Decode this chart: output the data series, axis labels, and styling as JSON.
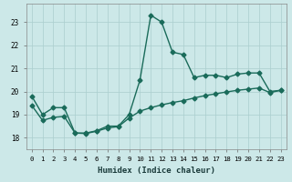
{
  "x": [
    0,
    1,
    2,
    3,
    4,
    5,
    6,
    7,
    8,
    9,
    10,
    11,
    12,
    13,
    14,
    15,
    16,
    17,
    18,
    19,
    20,
    21,
    22,
    23
  ],
  "y_upper": [
    19.8,
    19.0,
    19.3,
    19.3,
    18.2,
    18.2,
    18.3,
    18.5,
    18.5,
    19.0,
    20.5,
    23.3,
    23.0,
    21.7,
    21.6,
    20.6,
    20.7,
    20.7,
    20.6,
    20.75,
    20.8,
    20.8,
    20.0,
    20.05
  ],
  "y_lower": [
    19.4,
    18.75,
    18.88,
    18.92,
    18.2,
    18.18,
    18.28,
    18.42,
    18.48,
    18.85,
    19.15,
    19.3,
    19.42,
    19.52,
    19.6,
    19.72,
    19.82,
    19.9,
    19.98,
    20.05,
    20.1,
    20.15,
    19.95,
    20.05
  ],
  "line_color": "#1a6b5a",
  "bg_color": "#cce8e8",
  "grid_color": "#aacece",
  "xlabel": "Humidex (Indice chaleur)",
  "ylim": [
    17.5,
    23.8
  ],
  "xlim": [
    -0.5,
    23.5
  ],
  "yticks": [
    18,
    19,
    20,
    21,
    22,
    23
  ],
  "xticks": [
    0,
    1,
    2,
    3,
    4,
    5,
    6,
    7,
    8,
    9,
    10,
    11,
    12,
    13,
    14,
    15,
    16,
    17,
    18,
    19,
    20,
    21,
    22,
    23
  ],
  "markersize": 2.5,
  "linewidth": 1.0
}
